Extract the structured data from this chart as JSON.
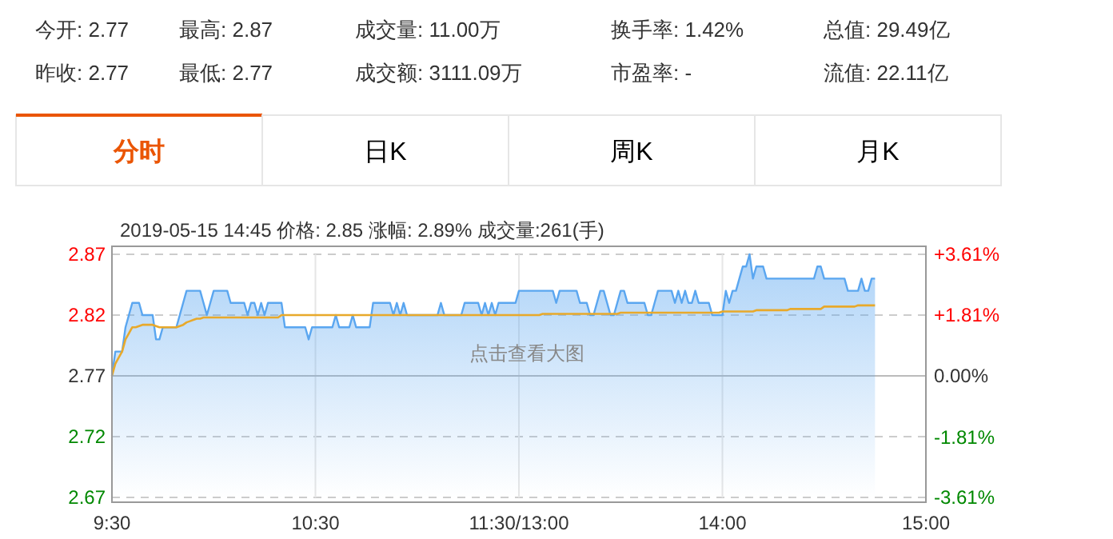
{
  "chart_data": [
    {
      "type": "other",
      "annotations": [
        "今开:  2.77",
        "昨收:  2.77",
        "最高:  2.87",
        "最低:  2.77",
        "成交量:  11.00万",
        "成交额:  3111.09万",
        "换手率:  1.42%",
        "市盈率:  -",
        "总值:  29.49亿",
        "流值:  22.11亿",
        "分时",
        "日K",
        "周K",
        "月K"
      ]
    },
    {
      "type": "line",
      "title": "2019-05-15 14:45  价格: 2.85  涨幅: 2.89%  成交量:261(手)",
      "annotations": [
        "点击查看大图"
      ],
      "categories": [
        "9:30",
        null,
        null,
        null,
        null,
        null,
        null,
        null,
        null,
        null,
        null,
        null,
        null,
        null,
        null,
        null,
        null,
        null,
        null,
        null,
        null,
        null,
        null,
        null,
        null,
        null,
        null,
        null,
        null,
        null,
        null,
        null,
        null,
        null,
        null,
        null,
        null,
        null,
        null,
        null,
        null,
        null,
        null,
        null,
        null,
        null,
        null,
        null,
        null,
        null,
        null,
        null,
        null,
        null,
        null,
        null,
        null,
        null,
        null,
        null,
        "10:30",
        null,
        null,
        null,
        null,
        null,
        null,
        null,
        null,
        null,
        null,
        null,
        null,
        null,
        null,
        null,
        null,
        null,
        null,
        null,
        null,
        null,
        null,
        null,
        null,
        null,
        null,
        null,
        null,
        null,
        null,
        null,
        null,
        null,
        null,
        null,
        null,
        null,
        null,
        null,
        null,
        null,
        null,
        null,
        null,
        null,
        null,
        null,
        null,
        null,
        null,
        null,
        null,
        null,
        null,
        null,
        null,
        null,
        null,
        null,
        "11:30/13:00",
        null,
        null,
        null,
        null,
        null,
        null,
        null,
        null,
        null,
        null,
        null,
        null,
        null,
        null,
        null,
        null,
        null,
        null,
        null,
        null,
        null,
        null,
        null,
        null,
        null,
        null,
        null,
        null,
        null,
        null,
        null,
        null,
        null,
        null,
        null,
        null,
        null,
        null,
        null,
        null,
        null,
        null,
        null,
        null,
        null,
        null,
        null,
        null,
        null,
        null,
        null,
        null,
        null,
        null,
        null,
        null,
        null,
        null,
        null,
        "14:00",
        null,
        null,
        null,
        null,
        null,
        null,
        null,
        null,
        null,
        null,
        null,
        null,
        null,
        null,
        null,
        null,
        null,
        null,
        null,
        null,
        null,
        null,
        null,
        null,
        null,
        null,
        null,
        null,
        null,
        null,
        null,
        null,
        null,
        null,
        null,
        null,
        null,
        null,
        null,
        null,
        null,
        null,
        null,
        null,
        null,
        null,
        null,
        null,
        null,
        null,
        null,
        null,
        null,
        null,
        null,
        null,
        null,
        null,
        null,
        "15:00"
      ],
      "ylim": [
        2.67,
        2.87
      ],
      "yticks": [
        2.67,
        2.72,
        2.77,
        2.82,
        2.87
      ],
      "y2lim": [
        -3.61,
        3.61
      ],
      "y2ticks": [
        {
          "value": -3.61,
          "label": "-3.61%"
        },
        {
          "value": -1.81,
          "label": "-1.81%"
        },
        {
          "value": 0,
          "label": "0.00%"
        },
        {
          "value": 1.81,
          "label": "+1.81%"
        },
        {
          "value": 3.61,
          "label": "+3.61%"
        }
      ],
      "grid": true,
      "ref_lines": [
        {
          "axis": "y",
          "value": 2.77
        }
      ],
      "series": [
        {
          "type": "area",
          "color": "#5aa6f0",
          "values": [
            2.77,
            2.79,
            2.79,
            2.79,
            2.81,
            2.82,
            2.83,
            2.83,
            2.83,
            2.82,
            2.82,
            2.82,
            2.82,
            2.8,
            2.8,
            2.81,
            2.81,
            2.81,
            2.81,
            2.81,
            2.82,
            2.83,
            2.84,
            2.84,
            2.84,
            2.84,
            2.84,
            2.83,
            2.82,
            2.83,
            2.84,
            2.84,
            2.84,
            2.84,
            2.84,
            2.83,
            2.83,
            2.83,
            2.83,
            2.83,
            2.82,
            2.83,
            2.83,
            2.82,
            2.83,
            2.82,
            2.83,
            2.83,
            2.83,
            2.83,
            2.83,
            2.81,
            2.81,
            2.81,
            2.81,
            2.81,
            2.81,
            2.81,
            2.8,
            2.81,
            2.81,
            2.81,
            2.81,
            2.81,
            2.81,
            2.81,
            2.82,
            2.81,
            2.81,
            2.81,
            2.81,
            2.82,
            2.81,
            2.81,
            2.81,
            2.81,
            2.81,
            2.83,
            2.83,
            2.83,
            2.83,
            2.83,
            2.83,
            2.82,
            2.83,
            2.82,
            2.83,
            2.82,
            2.82,
            2.82,
            2.82,
            2.82,
            2.82,
            2.82,
            2.82,
            2.82,
            2.82,
            2.83,
            2.82,
            2.82,
            2.82,
            2.82,
            2.82,
            2.82,
            2.83,
            2.83,
            2.83,
            2.83,
            2.83,
            2.82,
            2.83,
            2.82,
            2.83,
            2.82,
            2.83,
            2.83,
            2.83,
            2.83,
            2.83,
            2.83,
            2.84,
            2.84,
            2.84,
            2.84,
            2.84,
            2.84,
            2.84,
            2.84,
            2.84,
            2.84,
            2.84,
            2.83,
            2.84,
            2.84,
            2.84,
            2.84,
            2.84,
            2.84,
            2.83,
            2.83,
            2.83,
            2.82,
            2.82,
            2.83,
            2.84,
            2.84,
            2.83,
            2.82,
            2.82,
            2.83,
            2.84,
            2.84,
            2.83,
            2.83,
            2.83,
            2.83,
            2.83,
            2.83,
            2.82,
            2.82,
            2.83,
            2.84,
            2.84,
            2.84,
            2.84,
            2.84,
            2.83,
            2.84,
            2.83,
            2.84,
            2.83,
            2.83,
            2.84,
            2.83,
            2.83,
            2.83,
            2.83,
            2.82,
            2.82,
            2.82,
            2.82,
            2.84,
            2.83,
            2.84,
            2.84,
            2.85,
            2.86,
            2.86,
            2.87,
            2.85,
            2.86,
            2.86,
            2.86,
            2.85,
            2.85,
            2.85,
            2.85,
            2.85,
            2.85,
            2.85,
            2.85,
            2.85,
            2.85,
            2.85,
            2.85,
            2.85,
            2.85,
            2.85,
            2.86,
            2.86,
            2.85,
            2.85,
            2.85,
            2.85,
            2.85,
            2.85,
            2.85,
            2.84,
            2.84,
            2.84,
            2.84,
            2.85,
            2.84,
            2.84,
            2.85,
            2.85,
            null,
            null,
            null,
            null,
            null,
            null,
            null,
            null,
            null,
            null,
            null,
            null,
            null,
            null,
            null
          ]
        },
        {
          "type": "line",
          "color": "#e8a92b",
          "values": [
            2.77,
            2.78,
            2.785,
            2.79,
            2.8,
            2.805,
            2.81,
            2.81,
            2.811,
            2.812,
            2.812,
            2.812,
            2.812,
            2.811,
            2.81,
            2.81,
            2.81,
            2.81,
            2.81,
            2.81,
            2.811,
            2.812,
            2.814,
            2.815,
            2.816,
            2.817,
            2.817,
            2.818,
            2.818,
            2.818,
            2.818,
            2.818,
            2.818,
            2.818,
            2.818,
            2.818,
            2.818,
            2.818,
            2.818,
            2.818,
            2.818,
            2.818,
            2.818,
            2.818,
            2.818,
            2.818,
            2.818,
            2.818,
            2.818,
            2.818,
            2.82,
            2.82,
            2.82,
            2.82,
            2.82,
            2.82,
            2.82,
            2.82,
            2.82,
            2.82,
            2.82,
            2.82,
            2.82,
            2.82,
            2.82,
            2.82,
            2.82,
            2.82,
            2.82,
            2.82,
            2.82,
            2.82,
            2.82,
            2.82,
            2.82,
            2.82,
            2.82,
            2.82,
            2.82,
            2.82,
            2.82,
            2.82,
            2.82,
            2.82,
            2.82,
            2.82,
            2.82,
            2.82,
            2.82,
            2.82,
            2.82,
            2.82,
            2.82,
            2.82,
            2.82,
            2.82,
            2.82,
            2.82,
            2.82,
            2.82,
            2.82,
            2.82,
            2.82,
            2.82,
            2.82,
            2.82,
            2.82,
            2.82,
            2.82,
            2.82,
            2.82,
            2.82,
            2.82,
            2.82,
            2.82,
            2.82,
            2.82,
            2.82,
            2.82,
            2.82,
            2.82,
            2.82,
            2.82,
            2.82,
            2.82,
            2.82,
            2.82,
            2.821,
            2.821,
            2.821,
            2.821,
            2.821,
            2.821,
            2.821,
            2.821,
            2.821,
            2.821,
            2.821,
            2.821,
            2.821,
            2.821,
            2.821,
            2.821,
            2.821,
            2.821,
            2.821,
            2.821,
            2.821,
            2.821,
            2.821,
            2.822,
            2.822,
            2.822,
            2.822,
            2.822,
            2.822,
            2.822,
            2.822,
            2.822,
            2.822,
            2.822,
            2.822,
            2.822,
            2.822,
            2.822,
            2.822,
            2.822,
            2.822,
            2.822,
            2.822,
            2.822,
            2.822,
            2.822,
            2.822,
            2.822,
            2.822,
            2.822,
            2.822,
            2.822,
            2.822,
            2.823,
            2.823,
            2.823,
            2.823,
            2.823,
            2.823,
            2.823,
            2.823,
            2.823,
            2.823,
            2.824,
            2.824,
            2.824,
            2.824,
            2.824,
            2.824,
            2.824,
            2.824,
            2.824,
            2.824,
            2.825,
            2.825,
            2.825,
            2.825,
            2.825,
            2.825,
            2.825,
            2.825,
            2.825,
            2.825,
            2.827,
            2.827,
            2.827,
            2.827,
            2.827,
            2.827,
            2.827,
            2.827,
            2.827,
            2.827,
            2.828,
            2.828,
            2.828,
            2.828,
            2.828,
            2.828,
            null,
            null,
            null,
            null,
            null,
            null,
            null,
            null,
            null,
            null,
            null,
            null,
            null,
            null,
            null
          ]
        }
      ]
    }
  ]
}
